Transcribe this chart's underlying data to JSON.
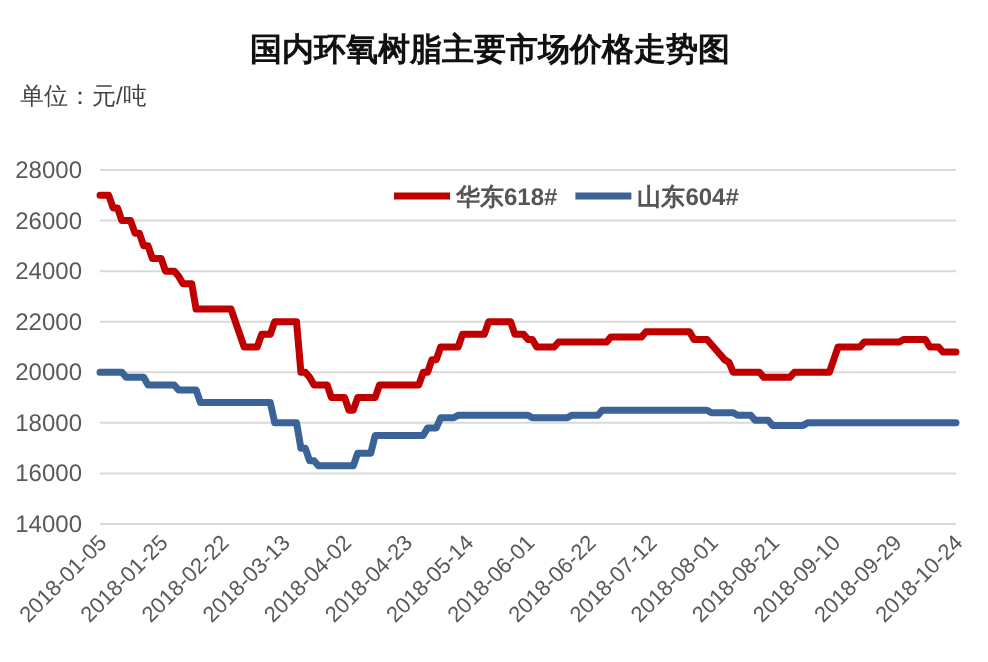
{
  "chart_data": {
    "type": "line",
    "title": "国内环氧树脂主要市场价格走势图",
    "annotations": [
      "单位：元/吨"
    ],
    "categories": [
      "2018-01-05",
      null,
      null,
      null,
      null,
      null,
      null,
      null,
      null,
      null,
      null,
      null,
      null,
      null,
      "2018-01-25",
      null,
      null,
      null,
      null,
      null,
      null,
      null,
      null,
      null,
      null,
      null,
      null,
      null,
      "2018-02-22",
      null,
      null,
      null,
      null,
      null,
      null,
      null,
      null,
      null,
      null,
      null,
      null,
      null,
      "2018-03-13",
      null,
      null,
      null,
      null,
      null,
      null,
      null,
      null,
      null,
      null,
      null,
      null,
      null,
      "2018-04-02",
      null,
      null,
      null,
      null,
      null,
      null,
      null,
      null,
      null,
      null,
      null,
      null,
      null,
      "2018-04-23",
      null,
      null,
      null,
      null,
      null,
      null,
      null,
      null,
      null,
      null,
      null,
      null,
      null,
      "2018-05-14",
      null,
      null,
      null,
      null,
      null,
      null,
      null,
      null,
      null,
      null,
      null,
      null,
      null,
      "2018-06-01",
      null,
      null,
      null,
      null,
      null,
      null,
      null,
      null,
      null,
      null,
      null,
      null,
      null,
      "2018-06-22",
      null,
      null,
      null,
      null,
      null,
      null,
      null,
      null,
      null,
      null,
      null,
      null,
      null,
      "2018-07-12",
      null,
      null,
      null,
      null,
      null,
      null,
      null,
      null,
      null,
      null,
      null,
      null,
      null,
      "2018-08-01",
      null,
      null,
      null,
      null,
      null,
      null,
      null,
      null,
      null,
      null,
      null,
      null,
      null,
      "2018-08-21",
      null,
      null,
      null,
      null,
      null,
      null,
      null,
      null,
      null,
      null,
      null,
      null,
      null,
      "2018-09-10",
      null,
      null,
      null,
      null,
      null,
      null,
      null,
      null,
      null,
      null,
      null,
      null,
      null,
      "2018-09-29",
      null,
      null,
      null,
      null,
      null,
      null,
      null,
      null,
      null,
      null,
      null,
      null,
      null,
      "2018-10-24"
    ],
    "series": [
      {
        "name": "华东618#",
        "color": "#c00000",
        "values": [
          27000,
          27000,
          27000,
          26500,
          26500,
          26000,
          26000,
          26000,
          25500,
          25500,
          25000,
          25000,
          24500,
          24500,
          24500,
          24000,
          24000,
          24000,
          23800,
          23500,
          23500,
          23500,
          22500,
          22500,
          22500,
          22500,
          22500,
          22500,
          22500,
          22500,
          22500,
          22000,
          21500,
          21000,
          21000,
          21000,
          21000,
          21500,
          21500,
          21500,
          22000,
          22000,
          22000,
          22000,
          22000,
          22000,
          20000,
          20000,
          19800,
          19500,
          19500,
          19500,
          19500,
          19000,
          19000,
          19000,
          19000,
          18500,
          18500,
          19000,
          19000,
          19000,
          19000,
          19000,
          19500,
          19500,
          19500,
          19500,
          19500,
          19500,
          19500,
          19500,
          19500,
          19500,
          20000,
          20000,
          20500,
          20500,
          21000,
          21000,
          21000,
          21000,
          21000,
          21500,
          21500,
          21500,
          21500,
          21500,
          21500,
          22000,
          22000,
          22000,
          22000,
          22000,
          22000,
          21500,
          21500,
          21500,
          21300,
          21300,
          21000,
          21000,
          21000,
          21000,
          21000,
          21200,
          21200,
          21200,
          21200,
          21200,
          21200,
          21200,
          21200,
          21200,
          21200,
          21200,
          21200,
          21400,
          21400,
          21400,
          21400,
          21400,
          21400,
          21400,
          21400,
          21600,
          21600,
          21600,
          21600,
          21600,
          21600,
          21600,
          21600,
          21600,
          21600,
          21600,
          21300,
          21300,
          21300,
          21300,
          21100,
          20900,
          20700,
          20500,
          20400,
          20000,
          20000,
          20000,
          20000,
          20000,
          20000,
          20000,
          19800,
          19800,
          19800,
          19800,
          19800,
          19800,
          19800,
          20000,
          20000,
          20000,
          20000,
          20000,
          20000,
          20000,
          20000,
          20000,
          20500,
          21000,
          21000,
          21000,
          21000,
          21000,
          21000,
          21200,
          21200,
          21200,
          21200,
          21200,
          21200,
          21200,
          21200,
          21200,
          21300,
          21300,
          21300,
          21300,
          21300,
          21300,
          21000,
          21000,
          21000,
          20800,
          20800,
          20800,
          20800
        ]
      },
      {
        "name": "山东604#",
        "color": "#3b6398",
        "values": [
          20000,
          20000,
          20000,
          20000,
          20000,
          20000,
          19800,
          19800,
          19800,
          19800,
          19800,
          19500,
          19500,
          19500,
          19500,
          19500,
          19500,
          19500,
          19300,
          19300,
          19300,
          19300,
          19300,
          18800,
          18800,
          18800,
          18800,
          18800,
          18800,
          18800,
          18800,
          18800,
          18800,
          18800,
          18800,
          18800,
          18800,
          18800,
          18800,
          18800,
          18000,
          18000,
          18000,
          18000,
          18000,
          18000,
          17000,
          17000,
          16500,
          16500,
          16300,
          16300,
          16300,
          16300,
          16300,
          16300,
          16300,
          16300,
          16300,
          16800,
          16800,
          16800,
          16800,
          17500,
          17500,
          17500,
          17500,
          17500,
          17500,
          17500,
          17500,
          17500,
          17500,
          17500,
          17500,
          17800,
          17800,
          17800,
          18200,
          18200,
          18200,
          18200,
          18300,
          18300,
          18300,
          18300,
          18300,
          18300,
          18300,
          18300,
          18300,
          18300,
          18300,
          18300,
          18300,
          18300,
          18300,
          18300,
          18300,
          18200,
          18200,
          18200,
          18200,
          18200,
          18200,
          18200,
          18200,
          18200,
          18300,
          18300,
          18300,
          18300,
          18300,
          18300,
          18300,
          18500,
          18500,
          18500,
          18500,
          18500,
          18500,
          18500,
          18500,
          18500,
          18500,
          18500,
          18500,
          18500,
          18500,
          18500,
          18500,
          18500,
          18500,
          18500,
          18500,
          18500,
          18500,
          18500,
          18500,
          18500,
          18400,
          18400,
          18400,
          18400,
          18400,
          18400,
          18300,
          18300,
          18300,
          18300,
          18100,
          18100,
          18100,
          18100,
          17900,
          17900,
          17900,
          17900,
          17900,
          17900,
          17900,
          17900,
          18000,
          18000,
          18000,
          18000,
          18000,
          18000,
          18000,
          18000,
          18000,
          18000,
          18000,
          18000,
          18000,
          18000,
          18000,
          18000,
          18000,
          18000,
          18000,
          18000,
          18000,
          18000,
          18000,
          18000,
          18000,
          18000,
          18000,
          18000,
          18000,
          18000,
          18000,
          18000,
          18000,
          18000,
          18000
        ]
      }
    ],
    "ylim": [
      14000,
      28000
    ],
    "yticks": [
      14000,
      16000,
      18000,
      20000,
      22000,
      24000,
      26000,
      28000
    ],
    "grid": "y",
    "legend": "top",
    "marker": "none",
    "line_style": "solid"
  }
}
